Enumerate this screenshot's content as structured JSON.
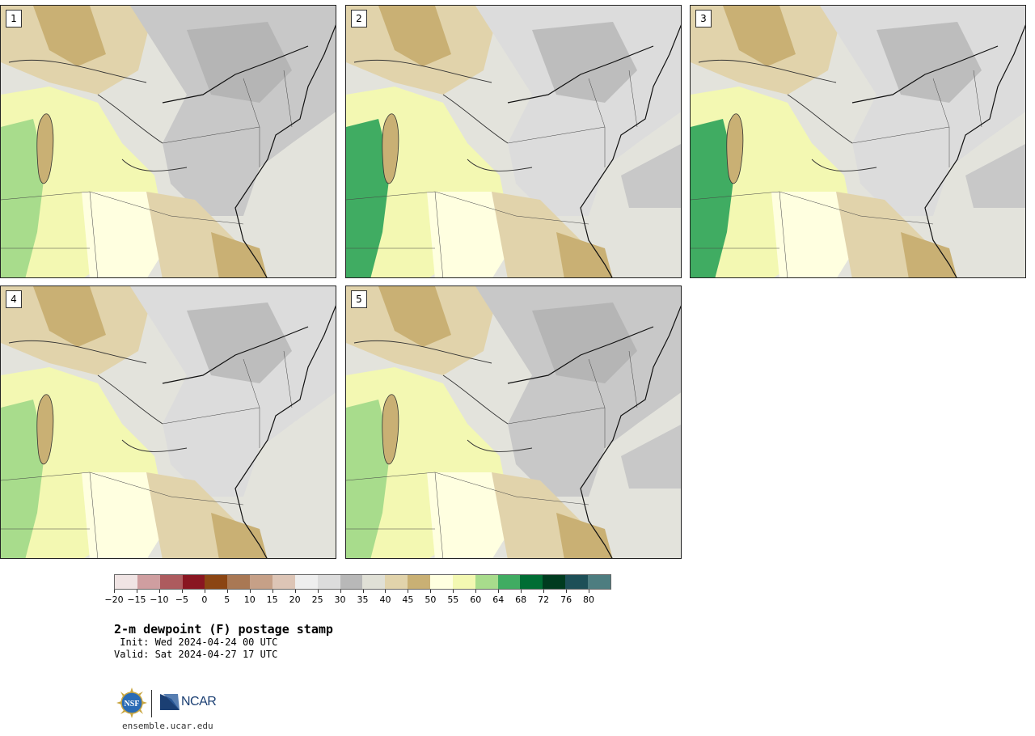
{
  "panels": [
    {
      "label": "1"
    },
    {
      "label": "2"
    },
    {
      "label": "3"
    },
    {
      "label": "4"
    },
    {
      "label": "5"
    }
  ],
  "colorbar": {
    "colors": [
      "#f0e4e4",
      "#cf9ea0",
      "#ad5b5e",
      "#891621",
      "#8b4513",
      "#a97854",
      "#c6a087",
      "#ddc5b6",
      "#eeeeee",
      "#dcdcdc",
      "#b8b8b8",
      "#e0e0d6",
      "#e1d3ab",
      "#c9b074",
      "#ffffe0",
      "#f3f8b2",
      "#a8dc8c",
      "#40ac62",
      "#006d34",
      "#003b1f",
      "#1d4f57",
      "#4d7d80"
    ],
    "tick_labels": [
      "−20",
      "−15",
      "−10",
      "−5",
      "0",
      "5",
      "10",
      "15",
      "20",
      "25",
      "30",
      "35",
      "40",
      "45",
      "50",
      "55",
      "60",
      "64",
      "68",
      "72",
      "76",
      "80"
    ]
  },
  "title": "2-m dewpoint (F) postage stamp",
  "init": " Init: Wed 2024-04-24 00 UTC",
  "valid": "Valid: Sat 2024-04-27 17 UTC",
  "website": "ensemble.ucar.edu",
  "logos": {
    "nsf_text": "NSF",
    "ncar_text": "NCAR"
  },
  "palette": {
    "gray_dark": "#a9a9a9",
    "gray": "#c8c8c8",
    "gray_light": "#dcdcdc",
    "pale": "#e3e3dc",
    "tan": "#e1d3ab",
    "tan_dark": "#c9b074",
    "cream": "#ffffe0",
    "yellow": "#f3f8b2",
    "green_light": "#a8dc8c",
    "green": "#40ac62",
    "ncar_blue": "#1b3f73"
  }
}
